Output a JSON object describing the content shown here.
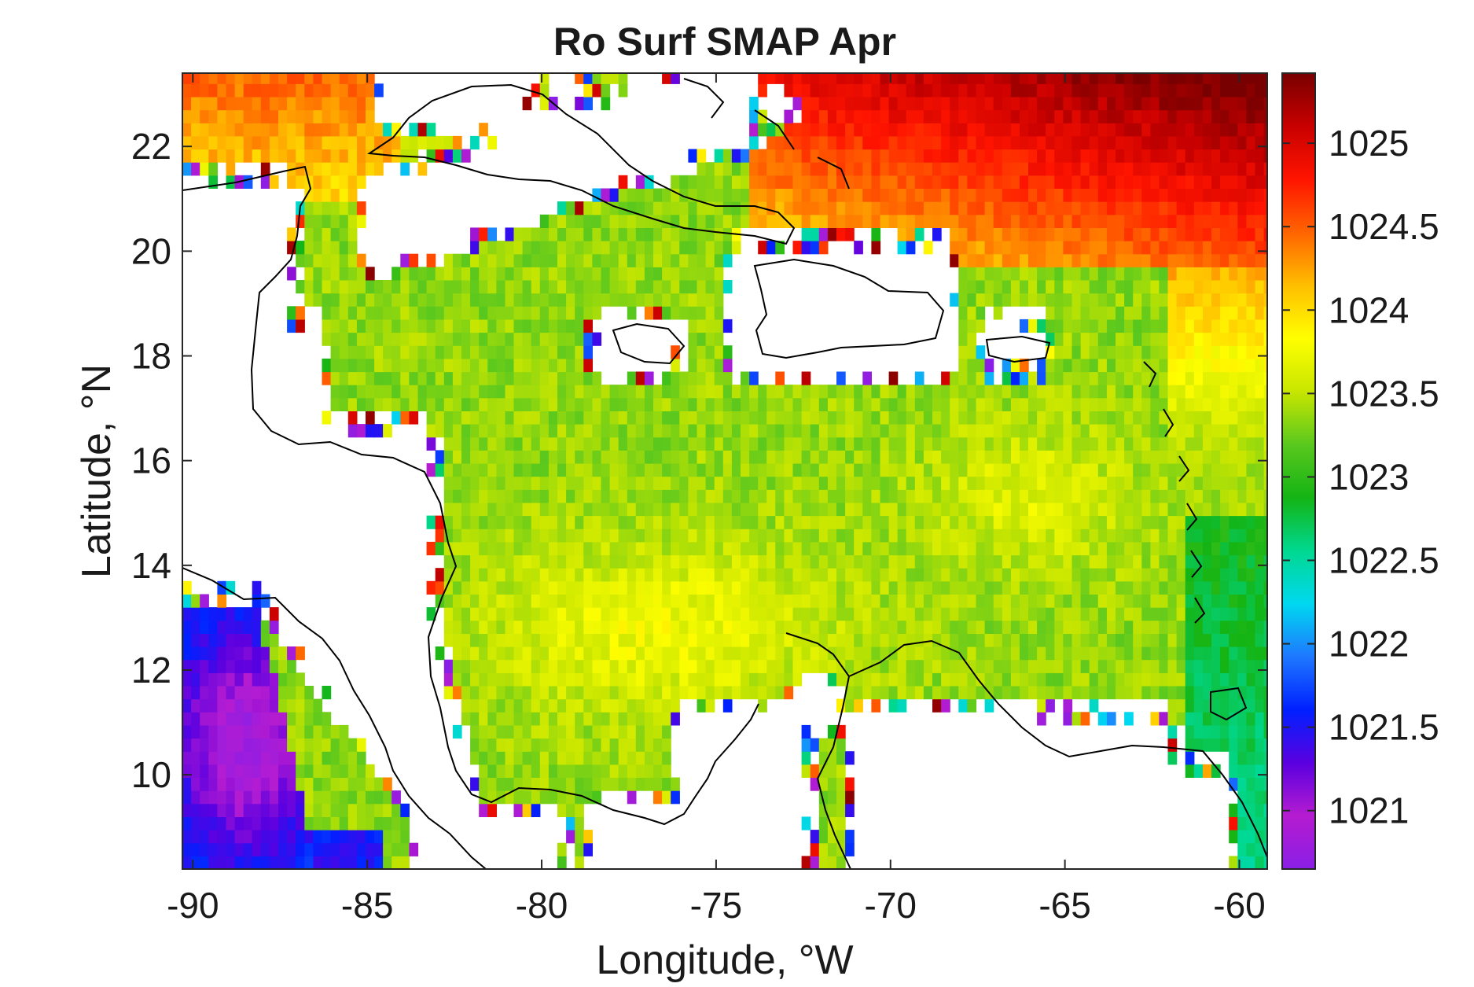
{
  "map": {
    "title": "Ro Surf SMAP Apr",
    "x_axis": {
      "label": "Longitude, °W",
      "ticks": [
        "-90",
        "-85",
        "-80",
        "-75",
        "-70",
        "-65",
        "-60"
      ],
      "range": [
        -90.3,
        -59.2
      ]
    },
    "y_axis": {
      "label": "Latitude, °N",
      "ticks": [
        "10",
        "12",
        "14",
        "16",
        "18",
        "20",
        "22"
      ],
      "range": [
        8.2,
        23.4
      ]
    },
    "colorbar": {
      "ticks": [
        "1021",
        "1021.5",
        "1022",
        "1022.5",
        "1023",
        "1023.5",
        "1024",
        "1024.5",
        "1025"
      ],
      "range": [
        1020.65,
        1025.42
      ],
      "colormap": [
        "#8a1ee6",
        "#b51cd0",
        "#5a00e0",
        "#0020ff",
        "#1e78ff",
        "#00d8f0",
        "#00d890",
        "#14b414",
        "#5ac81e",
        "#c8e600",
        "#ffff00",
        "#ffbe00",
        "#ff6400",
        "#ff1400",
        "#c80000",
        "#780000"
      ]
    },
    "gridded_field": "sea-surface density; mostly 1023.2–1023.6 in central Caribbean, 1024–1025.3 in the northeast Atlantic, 1021–1022 in the Pacific southwest corner"
  }
}
